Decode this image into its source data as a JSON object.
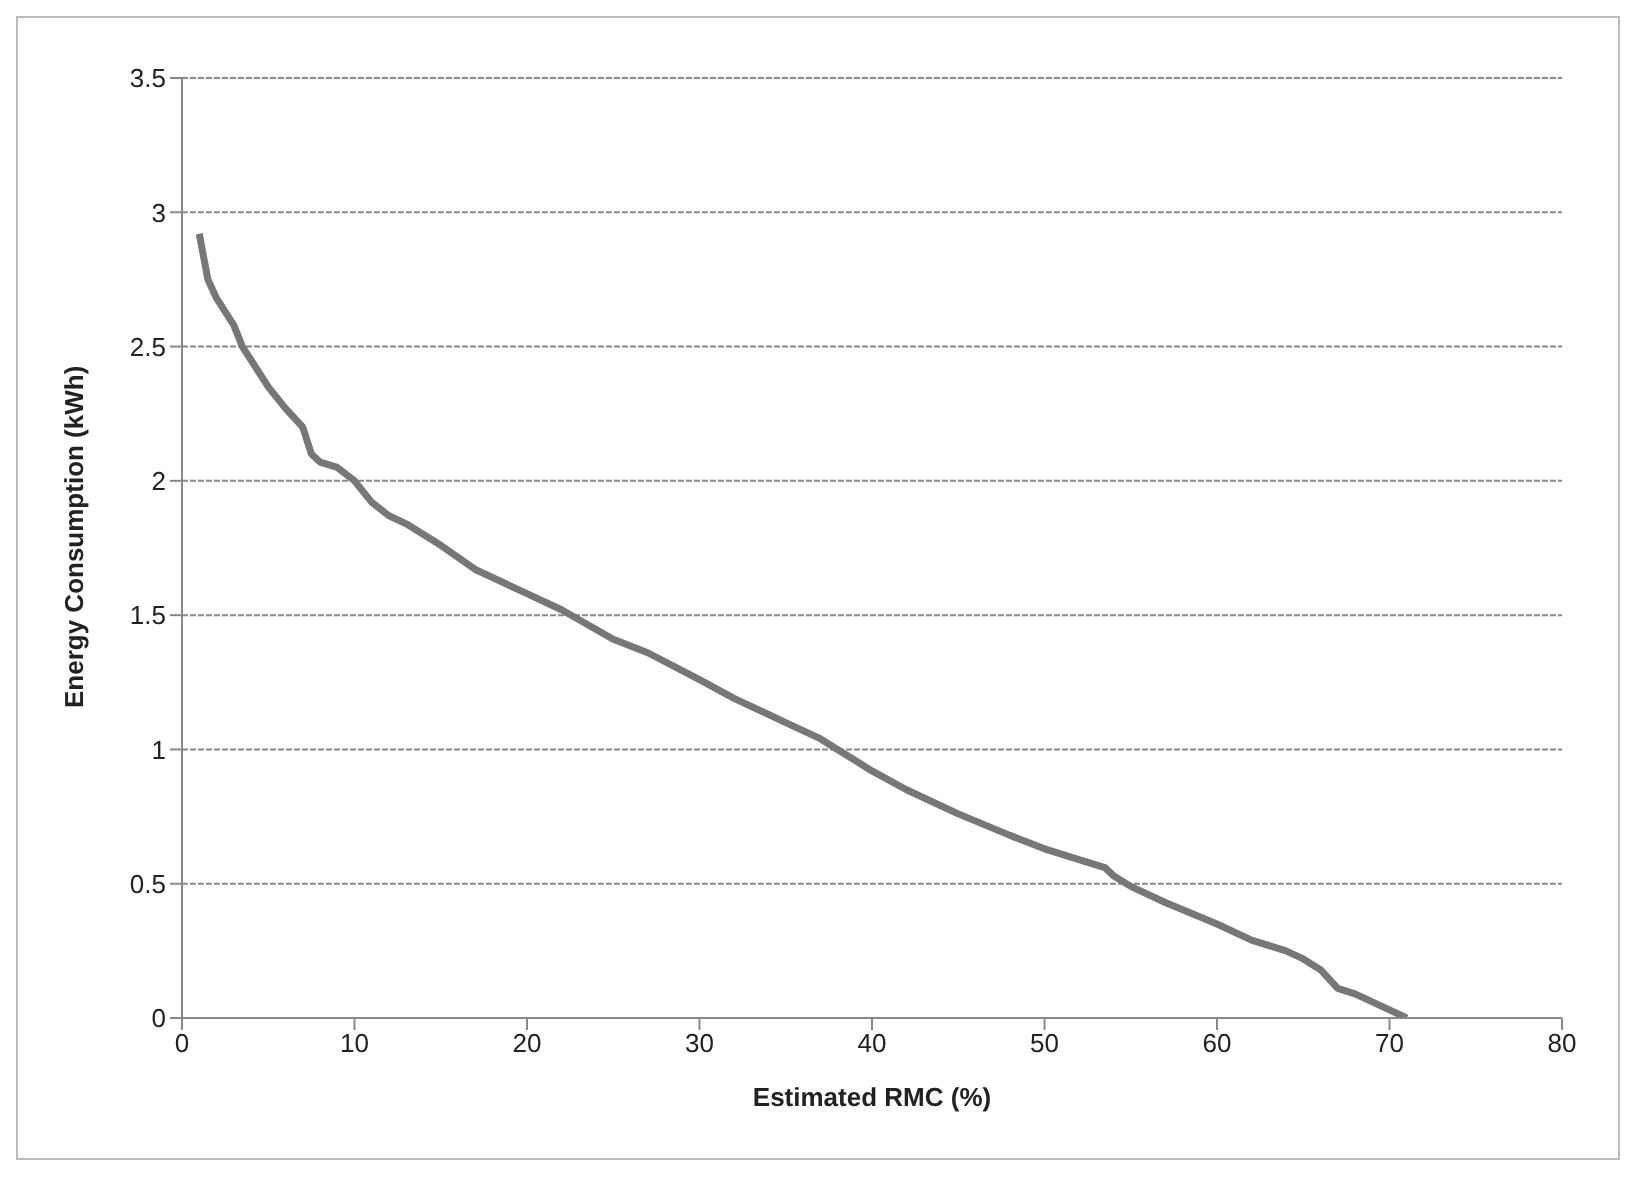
{
  "chart_data": {
    "type": "line",
    "xlabel": "Estimated RMC (%)",
    "ylabel": "Energy Consumption (kWh)",
    "x": [
      1,
      1.5,
      2,
      3,
      3.5,
      4,
      5,
      6,
      7,
      7.5,
      8,
      9,
      10,
      11,
      12,
      13,
      15,
      17,
      20,
      22,
      25,
      27,
      30,
      32,
      35,
      37,
      38,
      40,
      42,
      45,
      48,
      50,
      52,
      53.5,
      54,
      55,
      57,
      60,
      62,
      64,
      65,
      66,
      67,
      68,
      69,
      70,
      71
    ],
    "series": [
      {
        "color": "#777777",
        "values": [
          2.92,
          2.75,
          2.68,
          2.58,
          2.5,
          2.45,
          2.35,
          2.27,
          2.2,
          2.1,
          2.07,
          2.05,
          2.0,
          1.92,
          1.87,
          1.84,
          1.76,
          1.67,
          1.58,
          1.52,
          1.41,
          1.36,
          1.26,
          1.19,
          1.1,
          1.04,
          1.0,
          0.92,
          0.85,
          0.76,
          0.68,
          0.63,
          0.59,
          0.56,
          0.53,
          0.49,
          0.43,
          0.35,
          0.29,
          0.25,
          0.22,
          0.18,
          0.11,
          0.09,
          0.06,
          0.03,
          0
        ]
      }
    ],
    "xlim": [
      0,
      80
    ],
    "xticks": [
      0,
      10,
      20,
      30,
      40,
      50,
      60,
      70,
      80
    ],
    "ylim": [
      0,
      3.5
    ],
    "yticks": [
      0,
      0.5,
      1,
      1.5,
      2,
      2.5,
      3,
      3.5
    ],
    "grid": "y",
    "legend": false,
    "marker": "none",
    "line_style": "solid"
  }
}
